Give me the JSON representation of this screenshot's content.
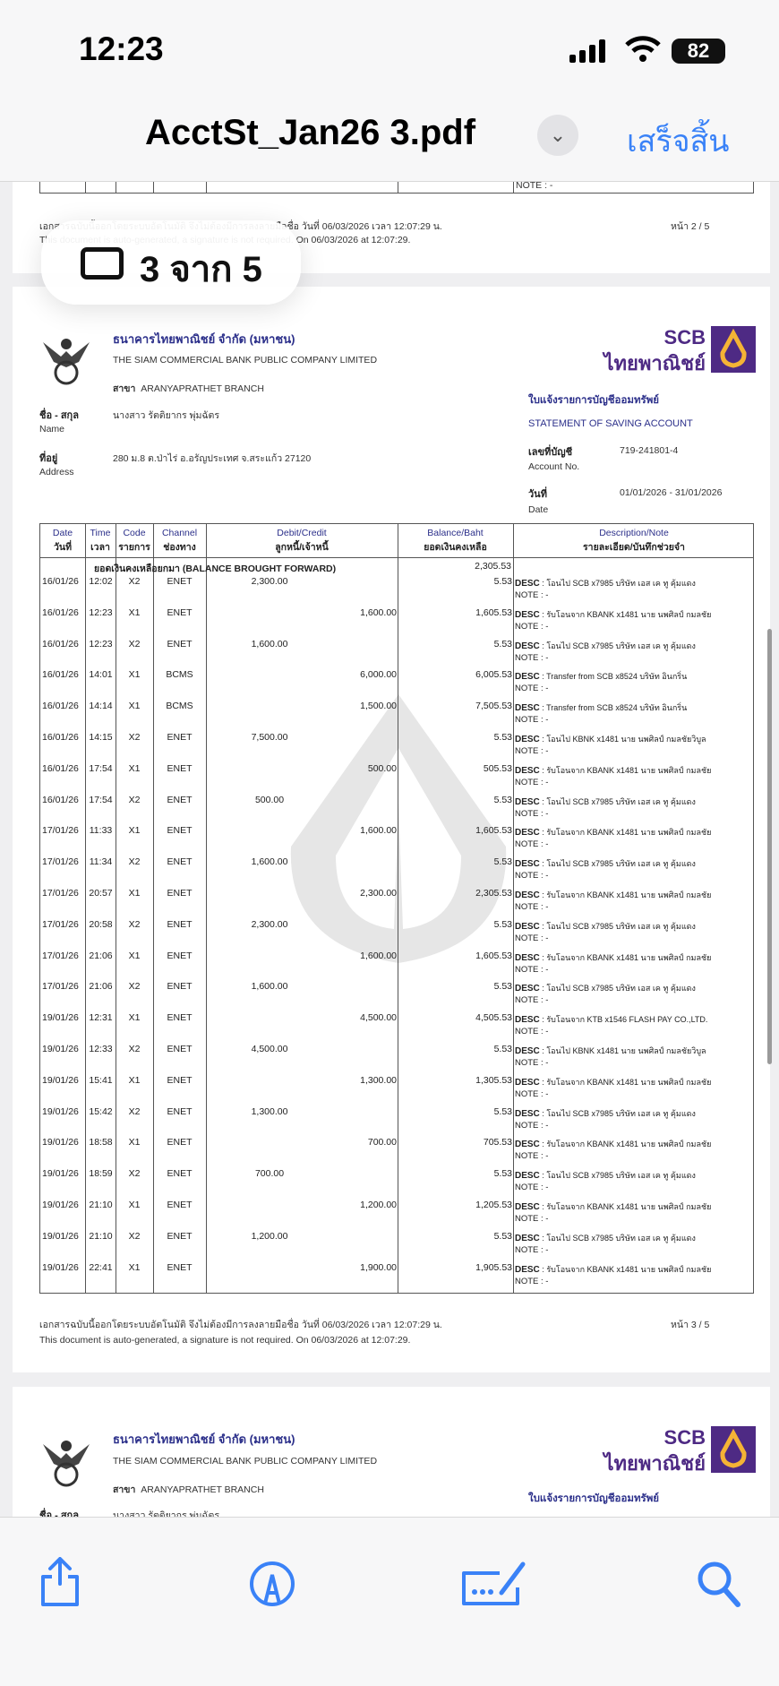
{
  "status_bar": {
    "time": "12:23",
    "battery": "82"
  },
  "header": {
    "title": "AcctSt_Jan26 3.pdf",
    "done": "เสร็จสิ้น"
  },
  "page_indicator": "3 จาก 5",
  "prev_page": {
    "note": "NOTE : -",
    "footer_th": "เอกสารฉบับนี้ออกโดยระบบอัตโนมัติ จึงไม่ต้องมีการลงลายมือชื่อ วันที่ 06/03/2026 เวลา 12:07:29 น.",
    "footer_en": "This document is auto-generated, a signature is not required. On 06/03/2026 at 12:07:29.",
    "page_no": "หน้า 2 / 5"
  },
  "bank": {
    "name_th": "ธนาคารไทยพาณิชย์ จำกัด (มหาชน)",
    "name_en": "THE SIAM COMMERCIAL BANK PUBLIC COMPANY LIMITED",
    "branch_label": "สาขา",
    "branch": "ARANYAPRATHET BRANCH",
    "logo_en": "SCB",
    "logo_th": "ไทยพาณิชย์",
    "brand_color": "#4e2a84",
    "logo_gold": "#f5b335"
  },
  "customer": {
    "name_label_th": "ชื่อ - สกุล",
    "name_label_en": "Name",
    "name": "นางสาว รัตติยากร พุ่มฉัตร",
    "address_label_th": "ที่อยู่",
    "address_label_en": "Address",
    "address": "280 ม.8 ต.ป่าไร่ อ.อรัญประเทศ จ.สระแก้ว 27120"
  },
  "statement": {
    "title_th": "ใบแจ้งรายการบัญชีออมทรัพย์",
    "title_en": "STATEMENT OF SAVING ACCOUNT",
    "account_label_th": "เลขที่บัญชี",
    "account_label_en": "Account No.",
    "account_no": "719-241801-4",
    "date_label_th": "วันที่",
    "date_label_en": "Date",
    "period": "01/01/2026 - 31/01/2026"
  },
  "table": {
    "headers": [
      {
        "en": "Date",
        "th": "วันที่"
      },
      {
        "en": "Time",
        "th": "เวลา"
      },
      {
        "en": "Code",
        "th": "รายการ"
      },
      {
        "en": "Channel",
        "th": "ช่องทาง"
      },
      {
        "en": "Debit/Credit",
        "th": "ลูกหนี้/เจ้าหนี้"
      },
      {
        "en": "Balance/Baht",
        "th": "ยอดเงินคงเหลือ"
      },
      {
        "en": "Description/Note",
        "th": "รายละเอียด/บันทึกช่วยจำ"
      }
    ],
    "brought_forward_label": "ยอดเงินคงเหลือยกมา (BALANCE BROUGHT FORWARD)",
    "brought_forward": "2,305.53",
    "desc_label": "DESC",
    "note_label": "NOTE : -",
    "rows": [
      {
        "date": "16/01/26",
        "time": "12:02",
        "code": "X2",
        "channel": "ENET",
        "debit": "2,300.00",
        "credit": "",
        "balance": "5.53",
        "desc": "โอนไป SCB x7985 บริษัท เอส เค ทู คุ้มแดง"
      },
      {
        "date": "16/01/26",
        "time": "12:23",
        "code": "X1",
        "channel": "ENET",
        "debit": "",
        "credit": "1,600.00",
        "balance": "1,605.53",
        "desc": "รับโอนจาก KBANK x1481 นาย นพศิลป์ กมลชัย"
      },
      {
        "date": "16/01/26",
        "time": "12:23",
        "code": "X2",
        "channel": "ENET",
        "debit": "1,600.00",
        "credit": "",
        "balance": "5.53",
        "desc": "โอนไป SCB x7985 บริษัท เอส เค ทู คุ้มแดง"
      },
      {
        "date": "16/01/26",
        "time": "14:01",
        "code": "X1",
        "channel": "BCMS",
        "debit": "",
        "credit": "6,000.00",
        "balance": "6,005.53",
        "desc": "Transfer from SCB x8524 บริษัท อินกริ่น"
      },
      {
        "date": "16/01/26",
        "time": "14:14",
        "code": "X1",
        "channel": "BCMS",
        "debit": "",
        "credit": "1,500.00",
        "balance": "7,505.53",
        "desc": "Transfer from SCB x8524 บริษัท อินกริ่น"
      },
      {
        "date": "16/01/26",
        "time": "14:15",
        "code": "X2",
        "channel": "ENET",
        "debit": "7,500.00",
        "credit": "",
        "balance": "5.53",
        "desc": "โอนไป KBNK x1481 นาย นพศิลป์ กมลชัยวิบูล"
      },
      {
        "date": "16/01/26",
        "time": "17:54",
        "code": "X1",
        "channel": "ENET",
        "debit": "",
        "credit": "500.00",
        "balance": "505.53",
        "desc": "รับโอนจาก KBANK x1481 นาย นพศิลป์ กมลชัย"
      },
      {
        "date": "16/01/26",
        "time": "17:54",
        "code": "X2",
        "channel": "ENET",
        "debit": "500.00",
        "credit": "",
        "balance": "5.53",
        "desc": "โอนไป SCB x7985 บริษัท เอส เค ทู คุ้มแดง"
      },
      {
        "date": "17/01/26",
        "time": "11:33",
        "code": "X1",
        "channel": "ENET",
        "debit": "",
        "credit": "1,600.00",
        "balance": "1,605.53",
        "desc": "รับโอนจาก KBANK x1481 นาย นพศิลป์ กมลชัย"
      },
      {
        "date": "17/01/26",
        "time": "11:34",
        "code": "X2",
        "channel": "ENET",
        "debit": "1,600.00",
        "credit": "",
        "balance": "5.53",
        "desc": "โอนไป SCB x7985 บริษัท เอส เค ทู คุ้มแดง"
      },
      {
        "date": "17/01/26",
        "time": "20:57",
        "code": "X1",
        "channel": "ENET",
        "debit": "",
        "credit": "2,300.00",
        "balance": "2,305.53",
        "desc": "รับโอนจาก KBANK x1481 นาย นพศิลป์ กมลชัย"
      },
      {
        "date": "17/01/26",
        "time": "20:58",
        "code": "X2",
        "channel": "ENET",
        "debit": "2,300.00",
        "credit": "",
        "balance": "5.53",
        "desc": "โอนไป SCB x7985 บริษัท เอส เค ทู คุ้มแดง"
      },
      {
        "date": "17/01/26",
        "time": "21:06",
        "code": "X1",
        "channel": "ENET",
        "debit": "",
        "credit": "1,600.00",
        "balance": "1,605.53",
        "desc": "รับโอนจาก KBANK x1481 นาย นพศิลป์ กมลชัย"
      },
      {
        "date": "17/01/26",
        "time": "21:06",
        "code": "X2",
        "channel": "ENET",
        "debit": "1,600.00",
        "credit": "",
        "balance": "5.53",
        "desc": "โอนไป SCB x7985 บริษัท เอส เค ทู คุ้มแดง"
      },
      {
        "date": "19/01/26",
        "time": "12:31",
        "code": "X1",
        "channel": "ENET",
        "debit": "",
        "credit": "4,500.00",
        "balance": "4,505.53",
        "desc": "รับโอนจาก KTB x1546 FLASH PAY CO.,LTD."
      },
      {
        "date": "19/01/26",
        "time": "12:33",
        "code": "X2",
        "channel": "ENET",
        "debit": "4,500.00",
        "credit": "",
        "balance": "5.53",
        "desc": "โอนไป KBNK x1481 นาย นพศิลป์ กมลชัยวิบูล"
      },
      {
        "date": "19/01/26",
        "time": "15:41",
        "code": "X1",
        "channel": "ENET",
        "debit": "",
        "credit": "1,300.00",
        "balance": "1,305.53",
        "desc": "รับโอนจาก KBANK x1481 นาย นพศิลป์ กมลชัย"
      },
      {
        "date": "19/01/26",
        "time": "15:42",
        "code": "X2",
        "channel": "ENET",
        "debit": "1,300.00",
        "credit": "",
        "balance": "5.53",
        "desc": "โอนไป SCB x7985 บริษัท เอส เค ทู คุ้มแดง"
      },
      {
        "date": "19/01/26",
        "time": "18:58",
        "code": "X1",
        "channel": "ENET",
        "debit": "",
        "credit": "700.00",
        "balance": "705.53",
        "desc": "รับโอนจาก KBANK x1481 นาย นพศิลป์ กมลชัย"
      },
      {
        "date": "19/01/26",
        "time": "18:59",
        "code": "X2",
        "channel": "ENET",
        "debit": "700.00",
        "credit": "",
        "balance": "5.53",
        "desc": "โอนไป SCB x7985 บริษัท เอส เค ทู คุ้มแดง"
      },
      {
        "date": "19/01/26",
        "time": "21:10",
        "code": "X1",
        "channel": "ENET",
        "debit": "",
        "credit": "1,200.00",
        "balance": "1,205.53",
        "desc": "รับโอนจาก KBANK x1481 นาย นพศิลป์ กมลชัย"
      },
      {
        "date": "19/01/26",
        "time": "21:10",
        "code": "X2",
        "channel": "ENET",
        "debit": "1,200.00",
        "credit": "",
        "balance": "5.53",
        "desc": "โอนไป SCB x7985 บริษัท เอส เค ทู คุ้มแดง"
      },
      {
        "date": "19/01/26",
        "time": "22:41",
        "code": "X1",
        "channel": "ENET",
        "debit": "",
        "credit": "1,900.00",
        "balance": "1,905.53",
        "desc": "รับโอนจาก KBANK x1481 นาย นพศิลป์ กมลชัย"
      }
    ]
  },
  "footer": {
    "th": "เอกสารฉบับนี้ออกโดยระบบอัตโนมัติ จึงไม่ต้องมีการลงลายมือชื่อ วันที่ 06/03/2026 เวลา 12:07:29 น.",
    "en": "This document is auto-generated, a signature is not required. On 06/03/2026 at 12:07:29.",
    "page_no": "หน้า 3 / 5"
  },
  "toolbar": {
    "icons": [
      "share-icon",
      "markup-icon",
      "fill-sign-icon",
      "search-icon"
    ],
    "accent": "#3a82f7"
  }
}
